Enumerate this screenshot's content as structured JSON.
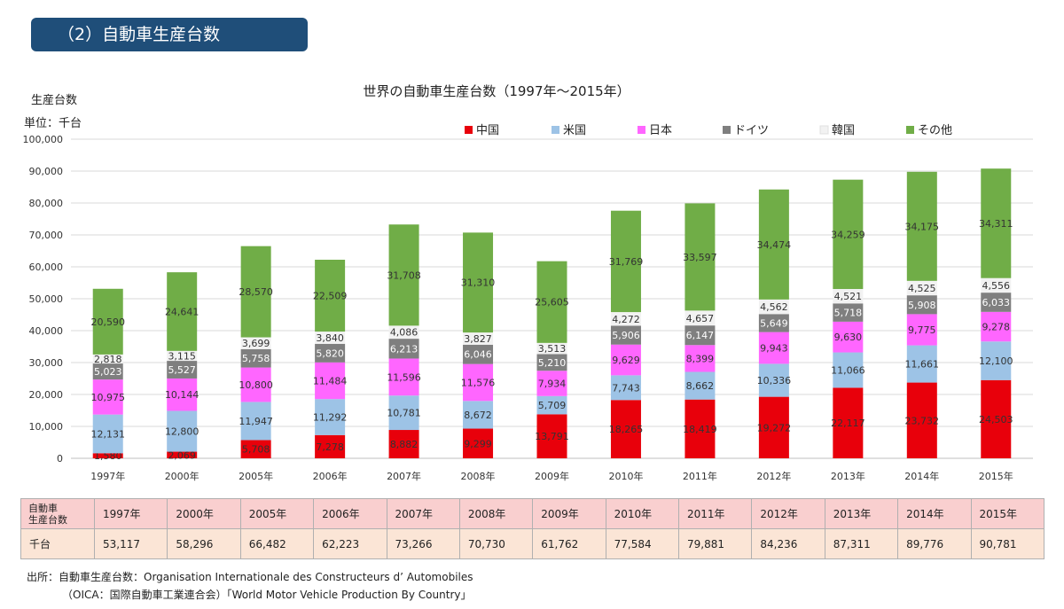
{
  "section": {
    "title": "（2）自動車生産台数"
  },
  "chart_data": {
    "type": "bar",
    "stacked": true,
    "title": "世界の自動車生産台数（1997年～2015年）",
    "ylabel": "生産台数",
    "unit": "単位：千台",
    "ylim": [
      0,
      100000
    ],
    "yticks": [
      0,
      10000,
      20000,
      30000,
      40000,
      50000,
      60000,
      70000,
      80000,
      90000,
      100000
    ],
    "ytick_labels": [
      "0",
      "10,000",
      "20,000",
      "30,000",
      "40,000",
      "50,000",
      "60,000",
      "70,000",
      "80,000",
      "90,000",
      "100,000"
    ],
    "grid": true,
    "legend_position": "top-right",
    "categories": [
      "1997年",
      "2000年",
      "2005年",
      "2006年",
      "2007年",
      "2008年",
      "2009年",
      "2010年",
      "2011年",
      "2012年",
      "2013年",
      "2014年",
      "2015年"
    ],
    "series": [
      {
        "name": "中国",
        "color": "#e8000b",
        "values": [
          1580,
          2069,
          5708,
          7278,
          8882,
          9299,
          13791,
          18265,
          18419,
          19272,
          22117,
          23732,
          24503
        ],
        "labels": [
          "1,580",
          "2,069",
          "5,708",
          "7,278",
          "8,882",
          "9,299",
          "13,791",
          "18,265",
          "18,419",
          "19,272",
          "22,117",
          "23,732",
          "24,503"
        ]
      },
      {
        "name": "米国",
        "color": "#9dc3e6",
        "values": [
          12131,
          12800,
          11947,
          11292,
          10781,
          8672,
          5709,
          7743,
          8662,
          10336,
          11066,
          11661,
          12100
        ],
        "labels": [
          "12,131",
          "12,800",
          "11,947",
          "11,292",
          "10,781",
          "8,672",
          "5,709",
          "7,743",
          "8,662",
          "10,336",
          "11,066",
          "11,661",
          "12,100"
        ]
      },
      {
        "name": "日本",
        "color": "#ff66ff",
        "values": [
          10975,
          10144,
          10800,
          11484,
          11596,
          11576,
          7934,
          9629,
          8399,
          9943,
          9630,
          9775,
          9278
        ],
        "labels": [
          "10,975",
          "10,144",
          "10,800",
          "11,484",
          "11,596",
          "11,576",
          "7,934",
          "9,629",
          "8,399",
          "9,943",
          "9,630",
          "9,775",
          "9,278"
        ]
      },
      {
        "name": "ドイツ",
        "color": "#7f7f7f",
        "values": [
          5023,
          5527,
          5758,
          5820,
          6213,
          6046,
          5210,
          5906,
          6147,
          5649,
          5718,
          5908,
          6033
        ],
        "labels": [
          "5,023",
          "5,527",
          "5,758",
          "5,820",
          "6,213",
          "6,046",
          "5,210",
          "5,906",
          "6,147",
          "5,649",
          "5,718",
          "5,908",
          "6,033"
        ]
      },
      {
        "name": "韓国",
        "color": "#f2f2f2",
        "values": [
          2818,
          3115,
          3699,
          3840,
          4086,
          3827,
          3513,
          4272,
          4657,
          4562,
          4521,
          4525,
          4556
        ],
        "labels": [
          "2,818",
          "3,115",
          "3,699",
          "3,840",
          "4,086",
          "3,827",
          "3,513",
          "4,272",
          "4,657",
          "4,562",
          "4,521",
          "4,525",
          "4,556"
        ]
      },
      {
        "name": "その他",
        "color": "#70ad47",
        "values": [
          20590,
          24641,
          28570,
          22509,
          31708,
          31310,
          25605,
          31769,
          33597,
          34474,
          34259,
          34175,
          34311
        ],
        "labels": [
          "20,590",
          "24,641",
          "28,570",
          "22,509",
          "31,708",
          "31,310",
          "25,605",
          "31,769",
          "33,597",
          "34,474",
          "34,259",
          "34,175",
          "34,311"
        ]
      }
    ]
  },
  "table": {
    "row_header_years": "自動車\n生産台数",
    "row_header_values": "千台",
    "years": [
      "1997年",
      "2000年",
      "2005年",
      "2006年",
      "2007年",
      "2008年",
      "2009年",
      "2010年",
      "2011年",
      "2012年",
      "2013年",
      "2014年",
      "2015年"
    ],
    "totals": [
      "53,117",
      "58,296",
      "66,482",
      "62,223",
      "73,266",
      "70,730",
      "61,762",
      "77,584",
      "79,881",
      "84,236",
      "87,311",
      "89,776",
      "90,781"
    ]
  },
  "source": {
    "line1": "出所：自動車生産台数：Organisation Internationale des Constructeurs d’ Automobiles",
    "line2": "（OICA：国際自動車工業連合会）「World Motor Vehicle Production By Country」"
  }
}
